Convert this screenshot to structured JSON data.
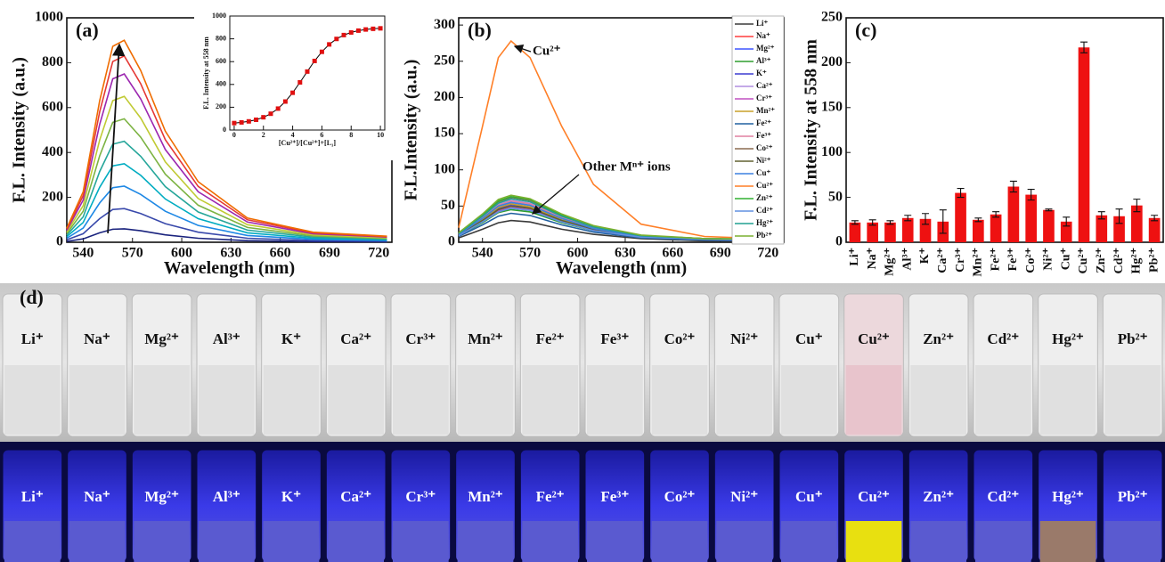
{
  "chart_data": [
    {
      "type": "line",
      "title": "(a)",
      "xlabel": "Wavelength (nm)",
      "ylabel": "F.L. Intensity (a.u.)",
      "x": [
        530,
        540,
        550,
        558,
        565,
        575,
        590,
        610,
        640,
        680,
        725
      ],
      "xlim": [
        530,
        728
      ],
      "xticks": [
        540,
        570,
        600,
        630,
        660,
        690,
        720
      ],
      "ylim": [
        0,
        1000
      ],
      "yticks": [
        0,
        200,
        400,
        600,
        800,
        1000
      ],
      "series": [
        {
          "color": "#1a237e",
          "values": [
            4,
            15,
            42,
            58,
            60,
            51,
            33,
            18,
            7,
            3,
            2
          ]
        },
        {
          "color": "#3949ab",
          "values": [
            11,
            38,
            105,
            146,
            150,
            128,
            83,
            45,
            18,
            8,
            5
          ]
        },
        {
          "color": "#1e88e5",
          "values": [
            18,
            63,
            175,
            243,
            250,
            213,
            138,
            75,
            30,
            13,
            8
          ]
        },
        {
          "color": "#00acc1",
          "values": [
            25,
            88,
            245,
            340,
            350,
            298,
            193,
            105,
            42,
            18,
            11
          ]
        },
        {
          "color": "#26a69a",
          "values": [
            32,
            113,
            315,
            437,
            450,
            383,
            248,
            135,
            54,
            23,
            14
          ]
        },
        {
          "color": "#7cb342",
          "values": [
            39,
            138,
            385,
            534,
            550,
            468,
            303,
            165,
            66,
            28,
            17
          ]
        },
        {
          "color": "#c0ca33",
          "values": [
            46,
            163,
            455,
            631,
            650,
            553,
            358,
            195,
            78,
            33,
            20
          ]
        },
        {
          "color": "#9c27b0",
          "values": [
            53,
            188,
            525,
            728,
            750,
            638,
            413,
            225,
            90,
            38,
            23
          ]
        },
        {
          "color": "#e53935",
          "values": [
            58,
            208,
            581,
            805,
            830,
            706,
            457,
            249,
            100,
            42,
            25
          ]
        },
        {
          "color": "#ef6c00",
          "values": [
            63,
            225,
            630,
            873,
            900,
            765,
            495,
            270,
            108,
            45,
            27
          ]
        }
      ]
    },
    {
      "type": "line",
      "title": "(b)",
      "xlabel": "Wavelength (nm)",
      "ylabel": "F.L.Intensity (a.u.)",
      "x": [
        525,
        540,
        550,
        558,
        570,
        590,
        610,
        640,
        680,
        730
      ],
      "xlim": [
        525,
        730
      ],
      "xticks": [
        540,
        570,
        600,
        630,
        660,
        690,
        720
      ],
      "ylim": [
        0,
        310
      ],
      "yticks": [
        0,
        50,
        100,
        150,
        200,
        250,
        300
      ],
      "legend": "upper right",
      "annotations": [
        "Cu²⁺",
        "Other Mⁿ⁺ ions"
      ],
      "series": [
        {
          "name": "Li⁺",
          "color": "#3a3a3a",
          "values": [
            6,
            18,
            27,
            30,
            28,
            18,
            11,
            5,
            2,
            2
          ]
        },
        {
          "name": "Na⁺",
          "color": "#ff3d3d",
          "values": [
            10,
            30,
            45,
            50,
            47,
            30,
            18,
            8,
            4,
            3
          ]
        },
        {
          "name": "Mg²⁺",
          "color": "#3d55ff",
          "values": [
            11,
            33,
            50,
            55,
            51,
            33,
            19,
            8,
            4,
            3
          ]
        },
        {
          "name": "Al³⁺",
          "color": "#2e9e2e",
          "values": [
            9,
            27,
            41,
            45,
            42,
            27,
            16,
            7,
            4,
            3
          ]
        },
        {
          "name": "K⁺",
          "color": "#3d3dd0",
          "values": [
            10,
            31,
            47,
            52,
            48,
            31,
            18,
            8,
            4,
            3
          ]
        },
        {
          "name": "Ca²⁺",
          "color": "#b08ee0",
          "values": [
            12,
            35,
            52,
            58,
            54,
            35,
            20,
            9,
            5,
            3
          ]
        },
        {
          "name": "Cr³⁺",
          "color": "#c050c0",
          "values": [
            10,
            29,
            43,
            48,
            45,
            29,
            17,
            7,
            4,
            3
          ]
        },
        {
          "name": "Mn²⁺",
          "color": "#c8a028",
          "values": [
            11,
            32,
            48,
            53,
            49,
            32,
            19,
            8,
            4,
            3
          ]
        },
        {
          "name": "Fe²⁺",
          "color": "#2060a0",
          "values": [
            8,
            24,
            36,
            40,
            37,
            24,
            14,
            6,
            3,
            2
          ]
        },
        {
          "name": "Fe³⁺",
          "color": "#e080a0",
          "values": [
            11,
            34,
            51,
            57,
            53,
            34,
            20,
            9,
            5,
            3
          ]
        },
        {
          "name": "Co²⁺",
          "color": "#8c6c50",
          "values": [
            12,
            37,
            56,
            62,
            58,
            37,
            22,
            9,
            5,
            4
          ]
        },
        {
          "name": "Ni²⁺",
          "color": "#606030",
          "values": [
            10,
            30,
            45,
            50,
            47,
            30,
            18,
            8,
            4,
            3
          ]
        },
        {
          "name": "Cu⁺",
          "color": "#3c80e0",
          "values": [
            11,
            33,
            50,
            55,
            51,
            33,
            19,
            8,
            4,
            3
          ]
        },
        {
          "name": "Cu²⁺",
          "color": "#ff7f27",
          "values": [
            20,
            160,
            255,
            278,
            255,
            160,
            80,
            25,
            8,
            4
          ]
        },
        {
          "name": "Zn²⁺",
          "color": "#30b030",
          "values": [
            13,
            38,
            57,
            63,
            59,
            38,
            22,
            9,
            5,
            4
          ]
        },
        {
          "name": "Cd²⁺",
          "color": "#6090e0",
          "values": [
            9,
            28,
            42,
            47,
            44,
            28,
            16,
            7,
            4,
            3
          ]
        },
        {
          "name": "Hg²⁺",
          "color": "#20a090",
          "values": [
            12,
            36,
            54,
            60,
            56,
            36,
            21,
            9,
            5,
            4
          ]
        },
        {
          "name": "Pb²⁺",
          "color": "#7ab030",
          "values": [
            13,
            39,
            59,
            65,
            60,
            39,
            23,
            10,
            5,
            4
          ]
        }
      ]
    },
    {
      "type": "bar",
      "title": "(c)",
      "ylabel": "F.L. Intensity at 558 nm",
      "color": "#ee1111",
      "categories": [
        "Li⁺",
        "Na⁺",
        "Mg²⁺",
        "Al³⁺",
        "K⁺",
        "Ca²⁺",
        "Cr³⁺",
        "Mn²⁺",
        "Fe²⁺",
        "Fe³⁺",
        "Co²⁺",
        "Ni²⁺",
        "Cu⁺",
        "Cu²⁺",
        "Zn²⁺",
        "Cd²⁺",
        "Hg²⁺",
        "Pb²⁺"
      ],
      "values": [
        22,
        22,
        22,
        27,
        26,
        23,
        55,
        25,
        31,
        62,
        53,
        36,
        23,
        217,
        30,
        29,
        41,
        27
      ],
      "errors": [
        2,
        3,
        2,
        3,
        6,
        13,
        5,
        2,
        3,
        6,
        6,
        1,
        5,
        6,
        4,
        8,
        7,
        3
      ],
      "ylim": [
        0,
        250
      ],
      "yticks": [
        0,
        50,
        100,
        150,
        200,
        250
      ]
    },
    {
      "type": "scatter",
      "xlabel": "[Cu²⁺]/[Cu²⁺]+[L₁]",
      "ylabel": "F.L. Intensity at 558 nm",
      "color": "#e01010",
      "line_color": "#000000",
      "x": [
        0,
        0.5,
        1,
        1.5,
        2,
        2.5,
        3,
        3.5,
        4,
        4.5,
        5,
        5.5,
        6,
        6.5,
        7,
        7.5,
        8,
        8.5,
        9,
        9.5,
        10
      ],
      "values": [
        61,
        67,
        76,
        90,
        112,
        143,
        188,
        250,
        327,
        418,
        513,
        606,
        686,
        751,
        799,
        833,
        856,
        872,
        882,
        888,
        892
      ],
      "xlim": [
        -0.3,
        10.3
      ],
      "xticks": [
        0,
        2,
        4,
        6,
        8,
        10
      ],
      "ylim": [
        0,
        1000
      ],
      "yticks": [
        0,
        200,
        400,
        600,
        800,
        1000
      ]
    }
  ],
  "photo": {
    "label": "(d)",
    "vials": [
      "Li⁺",
      "Na⁺",
      "Mg²⁺",
      "Al³⁺",
      "K⁺",
      "Ca²⁺",
      "Cr³⁺",
      "Mn²⁺",
      "Fe²⁺",
      "Fe³⁺",
      "Co²⁺",
      "Ni²⁺",
      "Cu⁺",
      "Cu²⁺",
      "Zn²⁺",
      "Cd²⁺",
      "Hg²⁺",
      "Pb²⁺"
    ]
  }
}
